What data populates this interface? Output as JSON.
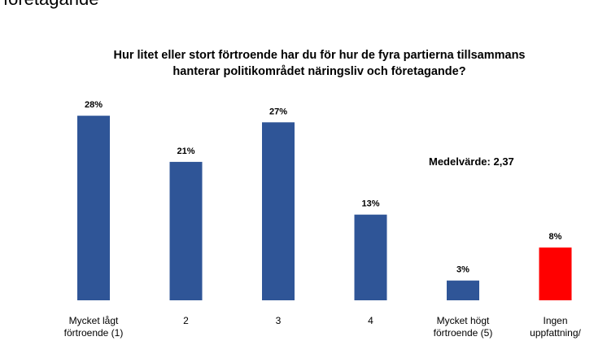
{
  "header": {
    "title": "företagande"
  },
  "chart_data": {
    "type": "bar",
    "title": "Hur litet eller stort förtroende har du för hur de fyra partierna tillsammans hanterar politikområdet näringsliv och företagande?",
    "annotation": "Medelvärde: 2,37",
    "categories": [
      "Mycket lågt\nförtroende (1)",
      "2",
      "3",
      "4",
      "Mycket högt\nförtroende (5)",
      "Ingen\nuppfattning/"
    ],
    "values": [
      28,
      21,
      27,
      13,
      3,
      8
    ],
    "value_labels": [
      "28%",
      "21%",
      "27%",
      "13%",
      "3%",
      "8%"
    ],
    "unit": "%",
    "bar_colors": [
      "#2f5597",
      "#2f5597",
      "#2f5597",
      "#2f5597",
      "#2f5597",
      "#ff0000"
    ],
    "ylim": [
      0,
      30
    ],
    "grid": false,
    "legend": "none"
  }
}
